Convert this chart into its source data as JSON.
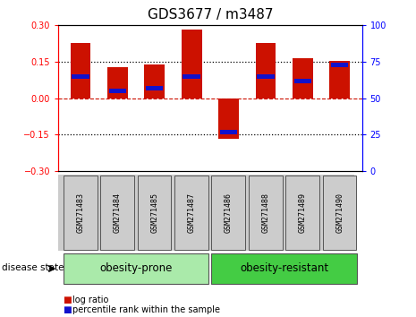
{
  "title": "GDS3677 / m3487",
  "samples": [
    "GSM271483",
    "GSM271484",
    "GSM271485",
    "GSM271487",
    "GSM271486",
    "GSM271488",
    "GSM271489",
    "GSM271490"
  ],
  "log_ratios": [
    0.228,
    0.128,
    0.138,
    0.283,
    -0.168,
    0.228,
    0.165,
    0.155
  ],
  "percentile_ranks": [
    65,
    55,
    57,
    65,
    27,
    65,
    62,
    73
  ],
  "groups": [
    {
      "label": "obesity-prone",
      "indices": [
        0,
        1,
        2,
        3
      ],
      "color": "#aaeaaa"
    },
    {
      "label": "obesity-resistant",
      "indices": [
        4,
        5,
        6,
        7
      ],
      "color": "#44cc44"
    }
  ],
  "bar_color": "#cc1100",
  "pct_color": "#1111cc",
  "ylim_left": [
    -0.3,
    0.3
  ],
  "ylim_right": [
    0,
    100
  ],
  "yticks_left": [
    -0.3,
    -0.15,
    0,
    0.15,
    0.3
  ],
  "yticks_right": [
    0,
    25,
    50,
    75,
    100
  ],
  "background_color": "#ffffff",
  "title_fontsize": 11,
  "disease_state_label": "disease state"
}
